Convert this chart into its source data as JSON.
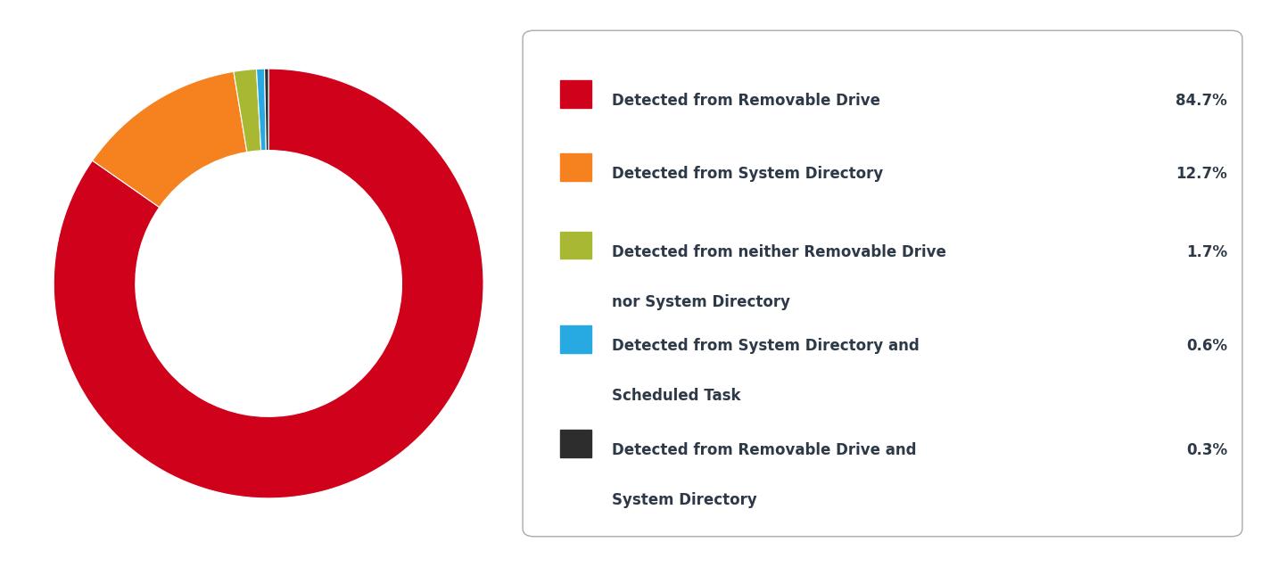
{
  "values": [
    84.7,
    12.7,
    1.7,
    0.6,
    0.3
  ],
  "colors": [
    "#D0021B",
    "#F5821F",
    "#A8B832",
    "#27AAE1",
    "#2D2D2D"
  ],
  "labels_line1": [
    "Detected from Removable Drive",
    "Detected from System Directory",
    "Detected from neither Removable Drive",
    "Detected from System Directory and",
    "Detected from Removable Drive and"
  ],
  "labels_line2": [
    "",
    "",
    "nor System Directory",
    "Scheduled Task",
    "System Directory"
  ],
  "percentages": [
    "84.7%",
    "12.7%",
    "1.7%",
    "0.6%",
    "0.3%"
  ],
  "background_color": "#FFFFFF",
  "donut_width": 0.38,
  "text_color": "#2D3947",
  "legend_label_color": "#2D3947",
  "box_edge_color": "#AAAAAA",
  "startangle": 90
}
